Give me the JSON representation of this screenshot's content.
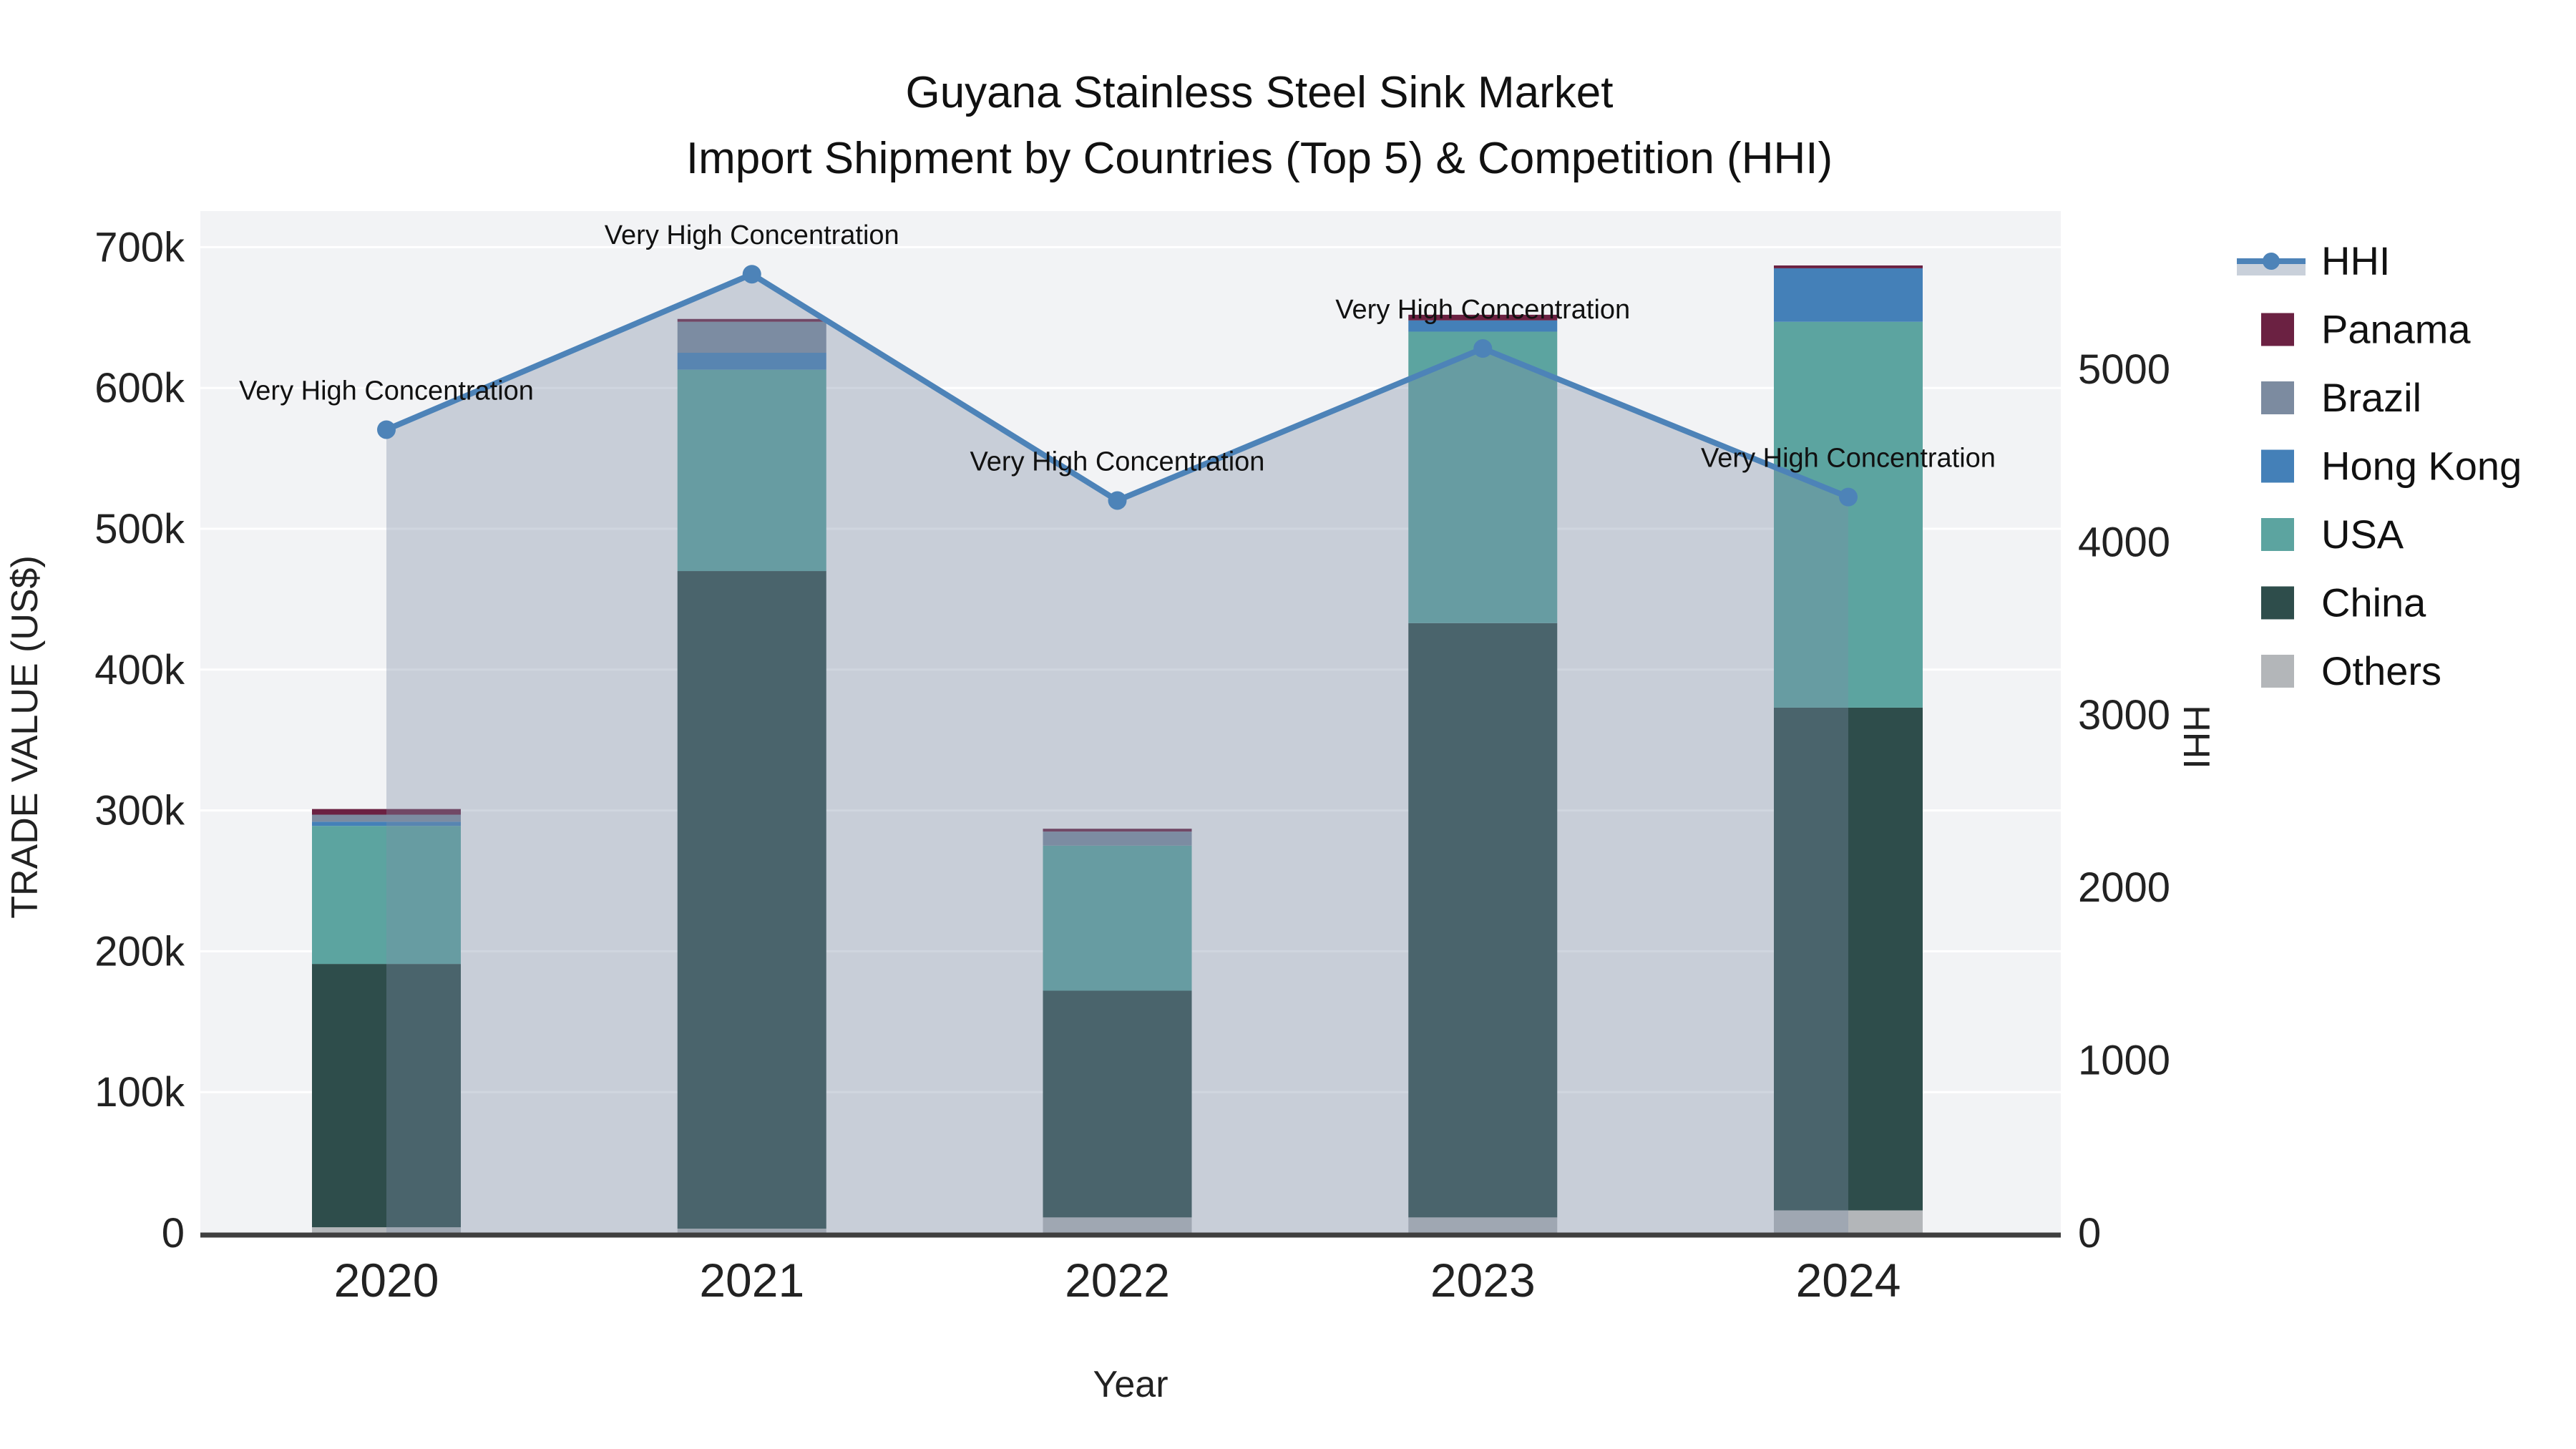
{
  "title": {
    "line1": "Guyana Stainless Steel Sink Market",
    "line2": "Import Shipment by Countries (Top 5) & Competition (HHI)"
  },
  "axes": {
    "x": {
      "title": "Year",
      "tick_labels": [
        "2020",
        "2021",
        "2022",
        "2023",
        "2024"
      ]
    },
    "y_left": {
      "title": "TRADE VALUE (US$)",
      "tick_labels": [
        "0",
        "100k",
        "200k",
        "300k",
        "400k",
        "500k",
        "600k",
        "700k"
      ],
      "tick_values": [
        0,
        100000,
        200000,
        300000,
        400000,
        500000,
        600000,
        700000
      ]
    },
    "y_right": {
      "title": "HHI",
      "tick_labels": [
        "0",
        "1000",
        "2000",
        "3000",
        "4000",
        "5000"
      ],
      "tick_values": [
        0,
        1000,
        2000,
        3000,
        4000,
        5000
      ]
    }
  },
  "legend": {
    "items": [
      {
        "label": "HHI",
        "type": "line",
        "color": "#4d83b8"
      },
      {
        "label": "Panama",
        "type": "swatch",
        "color": "#6b2142"
      },
      {
        "label": "Brazil",
        "type": "swatch",
        "color": "#7c8ba0"
      },
      {
        "label": "Hong Kong",
        "type": "swatch",
        "color": "#4480b8"
      },
      {
        "label": "USA",
        "type": "swatch",
        "color": "#5ca4a0"
      },
      {
        "label": "China",
        "type": "swatch",
        "color": "#2e4d4b"
      },
      {
        "label": "Others",
        "type": "swatch",
        "color": "#b3b6b9"
      }
    ]
  },
  "chart_data": {
    "type": "stacked-bar+line",
    "x": [
      "2020",
      "2021",
      "2022",
      "2023",
      "2024"
    ],
    "bar_unit": "US$ trade value",
    "bar_series": [
      {
        "name": "Others",
        "color": "#b3b6b9",
        "values": [
          4000,
          3000,
          11000,
          11000,
          16000
        ]
      },
      {
        "name": "China",
        "color": "#2e4d4b",
        "values": [
          187000,
          467000,
          161000,
          422000,
          357000
        ]
      },
      {
        "name": "USA",
        "color": "#5ca4a0",
        "values": [
          98000,
          143000,
          103000,
          207000,
          274000
        ]
      },
      {
        "name": "Hong Kong",
        "color": "#4480b8",
        "values": [
          3000,
          12000,
          0,
          8000,
          38000
        ]
      },
      {
        "name": "Brazil",
        "color": "#7c8ba0",
        "values": [
          5000,
          22000,
          10000,
          0,
          0
        ]
      },
      {
        "name": "Panama",
        "color": "#6b2142",
        "values": [
          4000,
          2000,
          2000,
          4000,
          2000
        ]
      }
    ],
    "bar_totals": [
      301000,
      649000,
      287000,
      652000,
      687000
    ],
    "line_series": {
      "name": "HHI",
      "color": "#4d83b8",
      "values": [
        4650,
        5550,
        4240,
        5120,
        4260
      ],
      "annotations": [
        "Very High Concentration",
        "Very High Concentration",
        "Very High Concentration",
        "Very High Concentration",
        "Very High Concentration"
      ]
    },
    "ylim_left": [
      0,
      716000
    ],
    "ylim_right": [
      0,
      5915
    ],
    "legend_position": "right",
    "grid": "horizontal, every 100k"
  },
  "colors": {
    "plot_bg": "#f2f3f5",
    "grid_line": "#ffffff",
    "axis_line": "#3f3f3f",
    "hhi_area_fill": "rgba(124,140,166,0.36)",
    "hhi_legend_band": "#c9d0da",
    "text": "#111111"
  }
}
